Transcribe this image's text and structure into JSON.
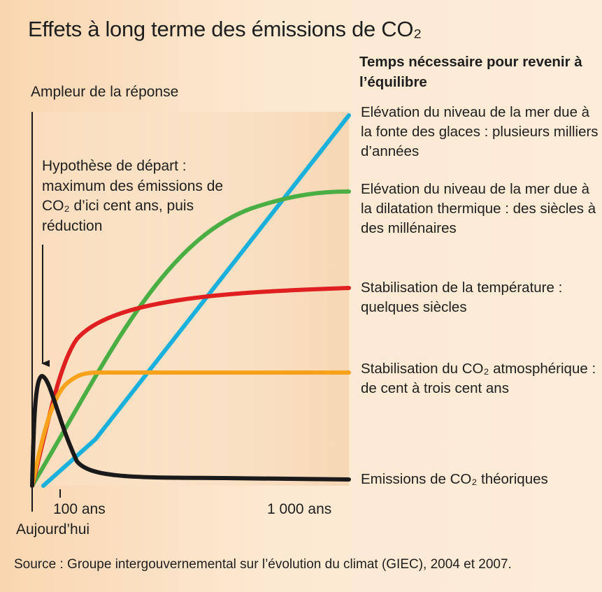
{
  "title": "Effets à long terme des émissions de CO₂",
  "y_axis_label": "Ampleur de la réponse",
  "right_header": "Temps nécessaire pour revenir à l’équilibre",
  "hypothesis_text": "Hypothèse de départ : maximum des émissions de CO₂ d’ici cent ans, puis réduction",
  "source": "Source : Groupe intergouvernemental sur l’évolution du climat (GIEC), 2004 et 2007.",
  "colors": {
    "blue": "#1ab0dc",
    "green": "#4aae44",
    "red": "#e02020",
    "orange": "#f8a21c",
    "black": "#1a1a1a"
  },
  "chart_data": {
    "type": "line",
    "title": "Effets à long terme des émissions de CO₂",
    "ylabel": "Ampleur de la réponse",
    "xlabel": "",
    "x_ticks": [
      {
        "label": "100 ans",
        "sublabel": "Aujourd’hui"
      },
      {
        "label": "1 000 ans"
      }
    ],
    "grid": false,
    "series": [
      {
        "key": "sea_ice",
        "color": "#1ab0dc",
        "label": "Elévation du niveau de la mer due à la fonte des glaces : plusieurs milliers d’années"
      },
      {
        "key": "sea_thermal",
        "color": "#4aae44",
        "label": "Elévation du niveau de la mer due à la dilatation thermique : des siècles à des millénaires"
      },
      {
        "key": "temperature",
        "color": "#e02020",
        "label": "Stabilisation de la température : quelques siècles"
      },
      {
        "key": "co2",
        "color": "#f8a21c",
        "label": "Stabilisation du CO₂ atmosphérique : de cent à trois cent ans"
      },
      {
        "key": "emissions",
        "color": "#1a1a1a",
        "label": "Emissions de CO₂ théoriques"
      }
    ]
  }
}
